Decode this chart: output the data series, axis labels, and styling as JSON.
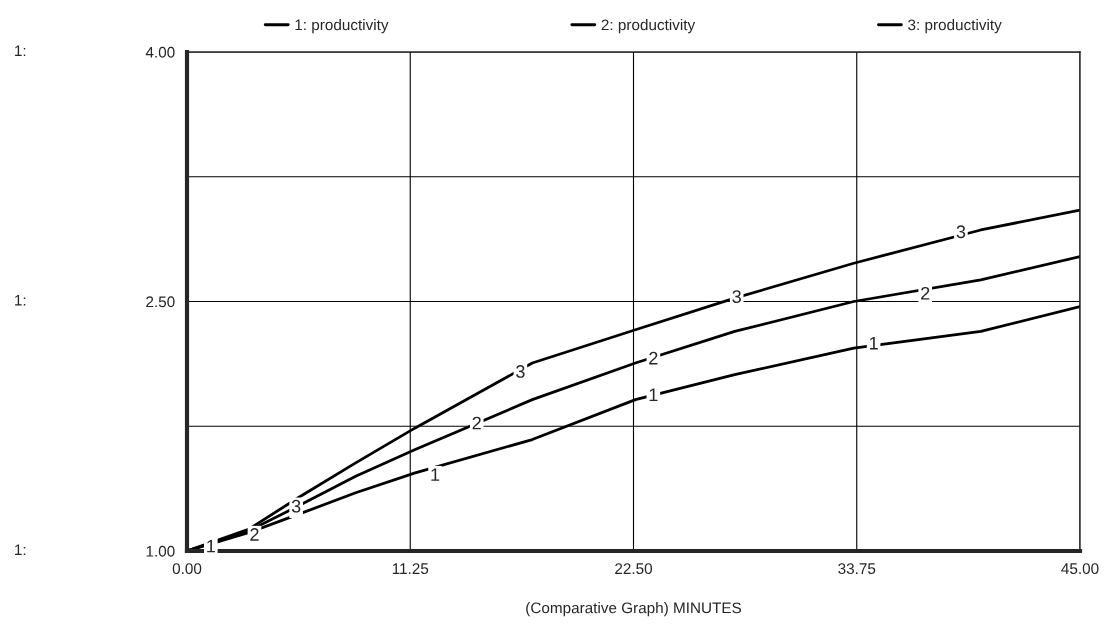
{
  "chart_data": {
    "type": "line",
    "xlabel": "(Comparative Graph) MINUTES",
    "x": [
      0,
      3.1,
      5.6,
      8.5,
      11.5,
      17.4,
      22.6,
      27.6,
      33.6,
      40,
      45
    ],
    "series": [
      {
        "name": "1: productivity",
        "color": "#000000",
        "values": [
          1.0,
          1.11,
          1.22,
          1.35,
          1.47,
          1.67,
          1.91,
          2.06,
          2.22,
          2.32,
          2.47
        ]
      },
      {
        "name": "2: productivity",
        "color": "#000000",
        "values": [
          1.0,
          1.12,
          1.27,
          1.45,
          1.61,
          1.91,
          2.13,
          2.32,
          2.5,
          2.63,
          2.77
        ]
      },
      {
        "name": "3: productivity",
        "color": "#000000",
        "values": [
          1.0,
          1.13,
          1.32,
          1.53,
          1.74,
          2.13,
          2.33,
          2.52,
          2.73,
          2.93,
          3.05
        ]
      }
    ],
    "xlim": [
      0,
      45
    ],
    "ylim": [
      1,
      4
    ],
    "xticks": [
      {
        "value": 0,
        "label": "0.00"
      },
      {
        "value": 11.25,
        "label": "11.25"
      },
      {
        "value": 22.5,
        "label": "22.50"
      },
      {
        "value": 33.75,
        "label": "33.75"
      },
      {
        "value": 45,
        "label": "45.00"
      }
    ],
    "yticks": [
      {
        "value": 1,
        "label": "1.00"
      },
      {
        "value": 1.75,
        "label": null
      },
      {
        "value": 2.5,
        "label": "2.50"
      },
      {
        "value": 3.25,
        "label": null
      },
      {
        "value": 4,
        "label": "4.00"
      }
    ],
    "grid": true,
    "legend": "top",
    "marker": "none",
    "line_style": "solid",
    "annotations": [
      "1:",
      "1:",
      "1:",
      {
        "text": "1",
        "x": 1.2,
        "y": 1.02
      },
      {
        "text": "1",
        "x": 12.5,
        "y": 1.45
      },
      {
        "text": "1",
        "x": 23.5,
        "y": 1.93
      },
      {
        "text": "1",
        "x": 34.6,
        "y": 2.24
      },
      {
        "text": "2",
        "x": 3.4,
        "y": 1.09
      },
      {
        "text": "2",
        "x": 14.6,
        "y": 1.76
      },
      {
        "text": "2",
        "x": 23.5,
        "y": 2.15
      },
      {
        "text": "2",
        "x": 37.2,
        "y": 2.54
      },
      {
        "text": "3",
        "x": 5.5,
        "y": 1.26
      },
      {
        "text": "3",
        "x": 16.8,
        "y": 2.07
      },
      {
        "text": "3",
        "x": 27.7,
        "y": 2.52
      },
      {
        "text": "3",
        "x": 39.0,
        "y": 2.91
      }
    ]
  }
}
